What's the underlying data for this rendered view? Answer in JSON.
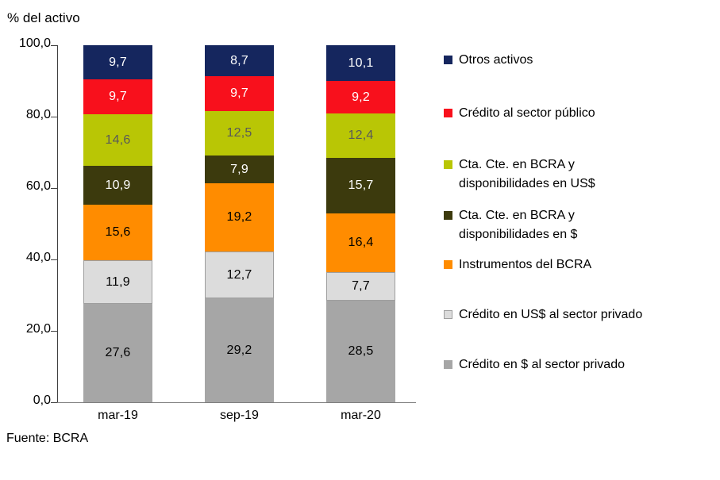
{
  "chart": {
    "title": "% del activo",
    "source": "Fuente: BCRA"
  },
  "chart_data": {
    "type": "bar",
    "stacked": true,
    "title": "% del activo",
    "source": "Fuente: BCRA",
    "categories": [
      "mar-19",
      "sep-19",
      "mar-20"
    ],
    "series": [
      {
        "name": "Crédito en $ al sector privado",
        "color": "#a6a6a6",
        "label_color": "#000000",
        "values": [
          27.6,
          29.2,
          28.5
        ]
      },
      {
        "name": "Crédito en US$ al sector privado",
        "color": "#dcdcdc",
        "label_color": "#000000",
        "marker_border": "#9e9e9e",
        "values": [
          11.9,
          12.7,
          7.7
        ]
      },
      {
        "name": "Instrumentos del BCRA",
        "color": "#ff8c00",
        "label_color": "#000000",
        "values": [
          15.6,
          19.2,
          16.4
        ]
      },
      {
        "name": "Cta. Cte. en BCRA y disponibilidades en $",
        "color": "#3c3a0d",
        "label_color": "#ffffff",
        "values": [
          10.9,
          7.9,
          15.7
        ]
      },
      {
        "name": "Cta. Cte. en BCRA y disponibilidades en US$",
        "color": "#b9c605",
        "label_color": "#595959",
        "values": [
          14.6,
          12.5,
          12.4
        ]
      },
      {
        "name": "Crédito al sector público",
        "color": "#f8101c",
        "label_color": "#ffffff",
        "values": [
          9.7,
          9.7,
          9.2
        ]
      },
      {
        "name": "Otros activos",
        "color": "#15265e",
        "label_color": "#ffffff",
        "values": [
          9.7,
          8.7,
          10.1
        ]
      }
    ],
    "ylim": [
      0,
      100
    ],
    "yticks": [
      "0,0",
      "20,0",
      "40,0",
      "60,0",
      "80,0",
      "100,0"
    ],
    "decimal_separator": ",",
    "grid": false,
    "legend_position": "right",
    "legend_order_top_to_bottom": [
      "Otros activos",
      "Crédito al sector público",
      "Cta. Cte. en BCRA y disponibilidades en US$",
      "Cta. Cte. en BCRA y disponibilidades en $",
      "Instrumentos del BCRA",
      "Crédito en US$ al sector privado",
      "Crédito en $ al sector privado"
    ]
  }
}
